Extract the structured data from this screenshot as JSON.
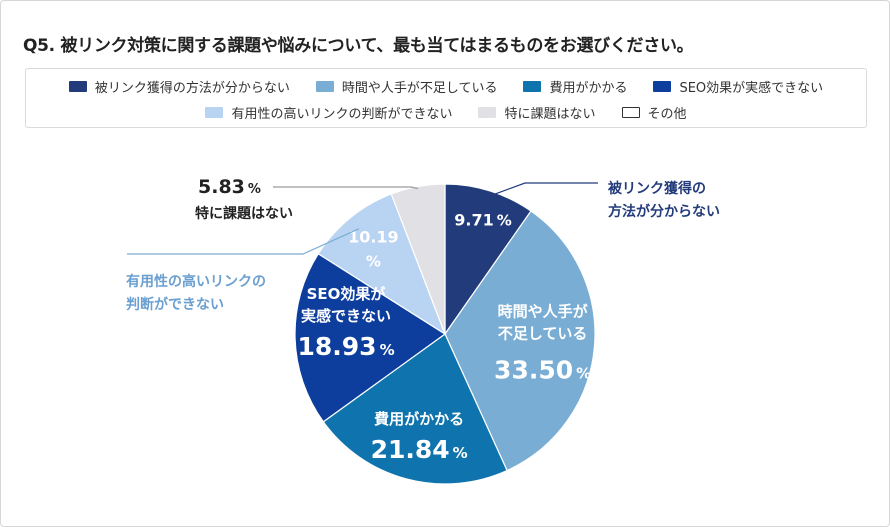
{
  "chart_data": {
    "type": "pie",
    "title": "Q5. 被リンク対策に関する課題や悩みについて、最も当てはまるものをお選びください。",
    "unit": "%",
    "categories": [
      "被リンク獲得の方法が分からない",
      "時間や人手が不足している",
      "費用がかかる",
      "SEO効果が実感できない",
      "有用性の高いリンクの判断ができない",
      "特に課題はない",
      "その他"
    ],
    "values": [
      9.71,
      33.5,
      21.84,
      18.93,
      10.19,
      5.83,
      0
    ],
    "value_labels": [
      "9.71",
      "33.50",
      "21.84",
      "18.93",
      "10.19",
      "5.83",
      "0"
    ],
    "colors": [
      "#223b7a",
      "#7aadd4",
      "#0f73ad",
      "#0d3e9e",
      "#b9d3f2",
      "#e1e0e5",
      "#ffffff"
    ],
    "slice_labels": [
      {
        "lines": [
          "被リンク獲得の",
          "方法が分からない"
        ],
        "value": "9.71",
        "unit": "%"
      },
      {
        "lines": [
          "時間や人手が",
          "不足している"
        ],
        "value": "33.50",
        "unit": "%"
      },
      {
        "lines": [
          "費用がかかる"
        ],
        "value": "21.84",
        "unit": "%"
      },
      {
        "lines": [
          "SEO効果が",
          "実感できない"
        ],
        "value": "18.93",
        "unit": "%"
      },
      {
        "lines": [
          "有用性の高いリンクの",
          "判断ができない"
        ],
        "value": "10.19",
        "unit": "%"
      },
      {
        "lines": [
          "特に課題はない"
        ],
        "value": "5.83",
        "unit": "%"
      },
      {
        "lines": [],
        "value": "",
        "unit": ""
      }
    ],
    "legend_position": "top",
    "legend_rows": [
      [
        0,
        1,
        2,
        3
      ],
      [
        4,
        5,
        6
      ]
    ]
  }
}
